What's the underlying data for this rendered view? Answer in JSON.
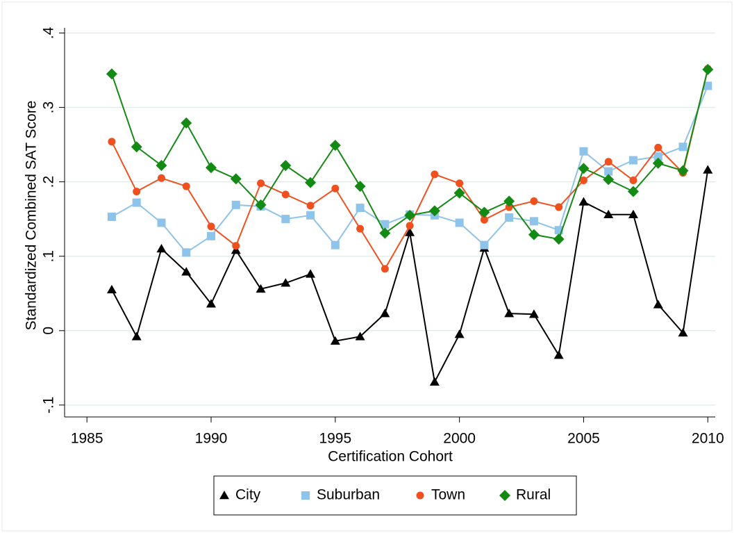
{
  "chart_data": {
    "type": "line",
    "x_label": "Certification Cohort",
    "y_label": "Standardized Combined SAT Score",
    "x": [
      1986,
      1987,
      1988,
      1989,
      1990,
      1991,
      1992,
      1993,
      1994,
      1995,
      1996,
      1997,
      1998,
      1999,
      2000,
      2001,
      2002,
      2003,
      2004,
      2005,
      2006,
      2007,
      2008,
      2009,
      2010
    ],
    "series": [
      {
        "name": "City",
        "color": "#000000",
        "marker": "triangle",
        "values": [
          0.055,
          -0.008,
          0.11,
          0.079,
          0.036,
          0.108,
          0.056,
          0.064,
          0.076,
          -0.014,
          -0.008,
          0.023,
          0.132,
          -0.069,
          -0.005,
          0.111,
          0.023,
          0.022,
          -0.033,
          0.173,
          0.156,
          0.156,
          0.035,
          -0.003,
          0.216
        ]
      },
      {
        "name": "Suburban",
        "color": "#8ec3ea",
        "marker": "square",
        "values": [
          0.153,
          0.172,
          0.145,
          0.105,
          0.127,
          0.169,
          0.167,
          0.15,
          0.155,
          0.115,
          0.165,
          0.143,
          0.156,
          0.155,
          0.145,
          0.115,
          0.152,
          0.147,
          0.135,
          0.241,
          0.214,
          0.229,
          0.234,
          0.247,
          0.329
        ]
      },
      {
        "name": "Town",
        "color": "#f0501e",
        "marker": "circle",
        "values": [
          0.254,
          0.187,
          0.205,
          0.194,
          0.14,
          0.114,
          0.198,
          0.183,
          0.168,
          0.191,
          0.137,
          0.083,
          0.141,
          0.21,
          0.198,
          0.149,
          0.166,
          0.174,
          0.166,
          0.202,
          0.227,
          0.202,
          0.246,
          0.212,
          0.352
        ]
      },
      {
        "name": "Rural",
        "color": "#138a13",
        "marker": "diamond",
        "values": [
          0.345,
          0.247,
          0.222,
          0.279,
          0.219,
          0.204,
          0.169,
          0.222,
          0.199,
          0.249,
          0.194,
          0.131,
          0.155,
          0.161,
          0.185,
          0.159,
          0.174,
          0.129,
          0.123,
          0.218,
          0.203,
          0.187,
          0.225,
          0.215,
          0.351
        ]
      }
    ],
    "xlim": [
      1984.1,
      2010.3
    ],
    "ylim": [
      -0.116,
      0.407
    ],
    "xticks": [
      1985,
      1990,
      1995,
      2000,
      2005,
      2010
    ],
    "yticks": [
      {
        "value": -0.1,
        "label": "-.1"
      },
      0,
      {
        "value": 0.1,
        "label": ".1"
      },
      {
        "value": 0.2,
        "label": ".2"
      },
      {
        "value": 0.3,
        "label": ".3"
      },
      {
        "value": 0.4,
        "label": ".4"
      }
    ],
    "grid": true,
    "legend": "bottom"
  }
}
